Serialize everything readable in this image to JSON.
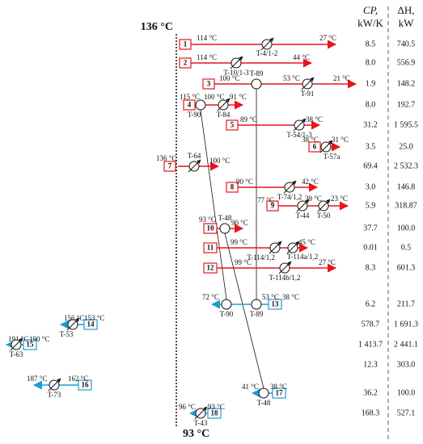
{
  "header": {
    "t_top": "136 °C",
    "t_bottom": "93 °C",
    "cp": "CP,",
    "cp_unit": "kW/K",
    "dh": "ΔH,",
    "dh_unit": "kW"
  },
  "streams": [
    {
      "id": "1",
      "temps": [
        "114 °C",
        "27 °C"
      ],
      "units": [
        "T-4/1-2"
      ],
      "cp": "8.5",
      "dh": "740.5"
    },
    {
      "id": "2",
      "temps": [
        "114 °C",
        "44 °C"
      ],
      "units": [
        "T-10/1-3"
      ],
      "cp": "8.0",
      "dh": "556.9"
    },
    {
      "id": "3",
      "temps": [
        "100 °C",
        "53 °C",
        "21 °C"
      ],
      "units": [
        "T-89",
        "T-91"
      ],
      "cp": "1.9",
      "dh": "148.2"
    },
    {
      "id": "4",
      "temps": [
        "115 °C",
        "100 °C",
        "91 °C"
      ],
      "units": [
        "T-90",
        "T-84"
      ],
      "cp": "8.0",
      "dh": "192.7"
    },
    {
      "id": "5",
      "temps": [
        "89 °C",
        "38 °C"
      ],
      "units": [
        "T-54/1-3"
      ],
      "cp": "31.2",
      "dh": "1 595.5"
    },
    {
      "id": "6",
      "temps": [
        "38 °C",
        "31 °C"
      ],
      "units": [
        "T-57a"
      ],
      "cp": "3.5",
      "dh": "25.0"
    },
    {
      "id": "7",
      "temps": [
        "136 °C",
        "100 °C"
      ],
      "units": [
        "T-64"
      ],
      "cp": "69.4",
      "dh": "2 532.3"
    },
    {
      "id": "8",
      "temps": [
        "90 °C",
        "42 °C"
      ],
      "units": [
        "T-74/1,2"
      ],
      "cp": "3.0",
      "dh": "146.8"
    },
    {
      "id": "9",
      "temps": [
        "77 °C",
        "39 °C",
        "23 °C"
      ],
      "units": [
        "T-44",
        "T-50"
      ],
      "cp": "5.9",
      "dh": "318.87"
    },
    {
      "id": "10",
      "temps": [
        "93 °C",
        "90 °C"
      ],
      "units": [
        "T-48"
      ],
      "cp": "37.7",
      "dh": "100.0"
    },
    {
      "id": "11",
      "temps": [
        "99 °C",
        "45 °C"
      ],
      "units": [
        "T-114/1,2",
        "T-114a/1,2"
      ],
      "cp": "0.01",
      "dh": "0.5"
    },
    {
      "id": "12",
      "temps": [
        "99 °C",
        "27 °C"
      ],
      "units": [
        "T-114b/1,2"
      ],
      "cp": "8.3",
      "dh": "601.3"
    },
    {
      "id": "13",
      "temps": [
        "72 °C",
        "53 °C",
        "38 °C"
      ],
      "units": [
        "T-90",
        "T-89"
      ],
      "cp": "6.2",
      "dh": "211.7"
    },
    {
      "id": "14",
      "temps": [
        "156 °C",
        "153 °C"
      ],
      "units": [
        "T-53"
      ],
      "cp": "578.7",
      "dh": "1 691.3"
    },
    {
      "id": "15",
      "temps": [
        "191 °C",
        "190 °C"
      ],
      "units": [
        "T-63"
      ],
      "cp": "1 413.7",
      "dh": "2 441.1"
    },
    {
      "id": "16",
      "temps": [
        "187 °C",
        "162 °C"
      ],
      "units": [
        "T-73"
      ],
      "cp": "12.3",
      "dh": "303.0"
    },
    {
      "id": "17",
      "temps": [
        "41 °C",
        "38 °C"
      ],
      "units": [
        "T-48"
      ],
      "cp": "36.2",
      "dh": "100.0"
    },
    {
      "id": "18",
      "temps": [
        "96 °C",
        "93 °C"
      ],
      "units": [
        "T-43"
      ],
      "cp": "168.3",
      "dh": "527.1"
    }
  ]
}
